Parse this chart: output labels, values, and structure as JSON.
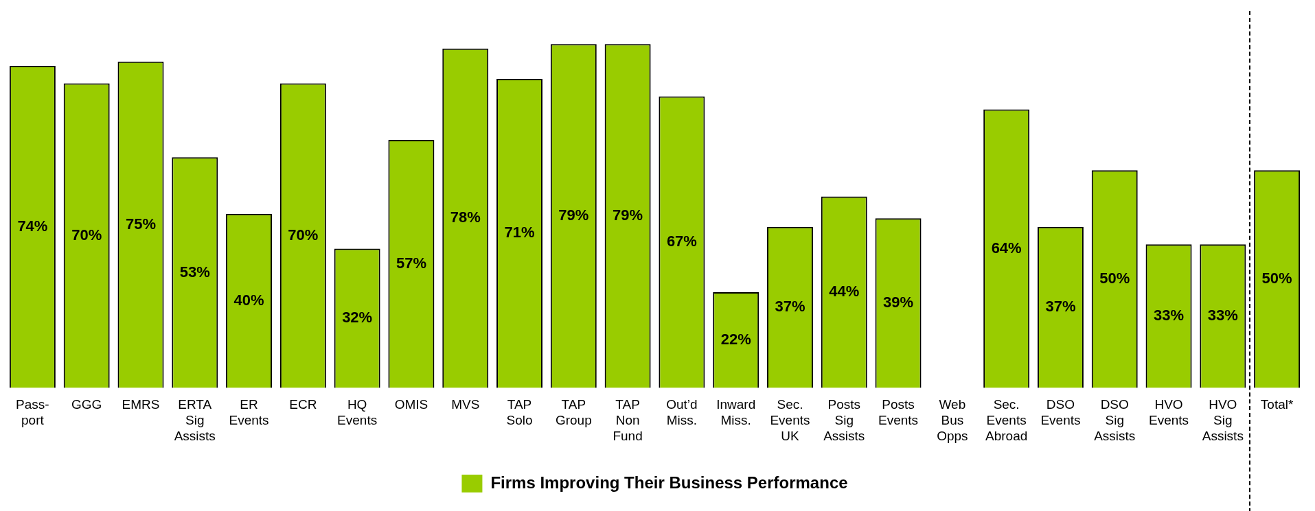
{
  "chart_data": {
    "type": "bar",
    "categories": [
      "Pass-\nport",
      "GGG",
      "EMRS",
      "ERTA\nSig\nAssists",
      "ER\nEvents",
      "ECR",
      "HQ\nEvents",
      "OMIS",
      "MVS",
      "TAP\nSolo",
      "TAP\nGroup",
      "TAP\nNon\nFund",
      "Out’d\nMiss.",
      "Inward\nMiss.",
      "Sec.\nEvents\nUK",
      "Posts\nSig\nAssists",
      "Posts\nEvents",
      "Web\nBus\nOpps",
      "Sec.\nEvents\nAbroad",
      "DSO\nEvents",
      "DSO\nSig\nAssists",
      "HVO\nEvents",
      "HVO\nSig\nAssists",
      "Total*"
    ],
    "series": [
      {
        "name": "Firms Improving Their Business Performance",
        "color": "#99cc00",
        "values": [
          74,
          70,
          75,
          53,
          40,
          70,
          32,
          57,
          78,
          71,
          79,
          79,
          67,
          22,
          37,
          44,
          39,
          null,
          64,
          37,
          50,
          33,
          33,
          50
        ],
        "value_labels": [
          "74%",
          "70%",
          "75%",
          "53%",
          "40%",
          "70%",
          "32%",
          "57%",
          "78%",
          "71%",
          "79%",
          "79%",
          "67%",
          "22%",
          "37%",
          "44%",
          "39%",
          null,
          "64%",
          "37%",
          "50%",
          "33%",
          "33%",
          "50%"
        ]
      }
    ],
    "legend": "bottom",
    "grid": false
  }
}
